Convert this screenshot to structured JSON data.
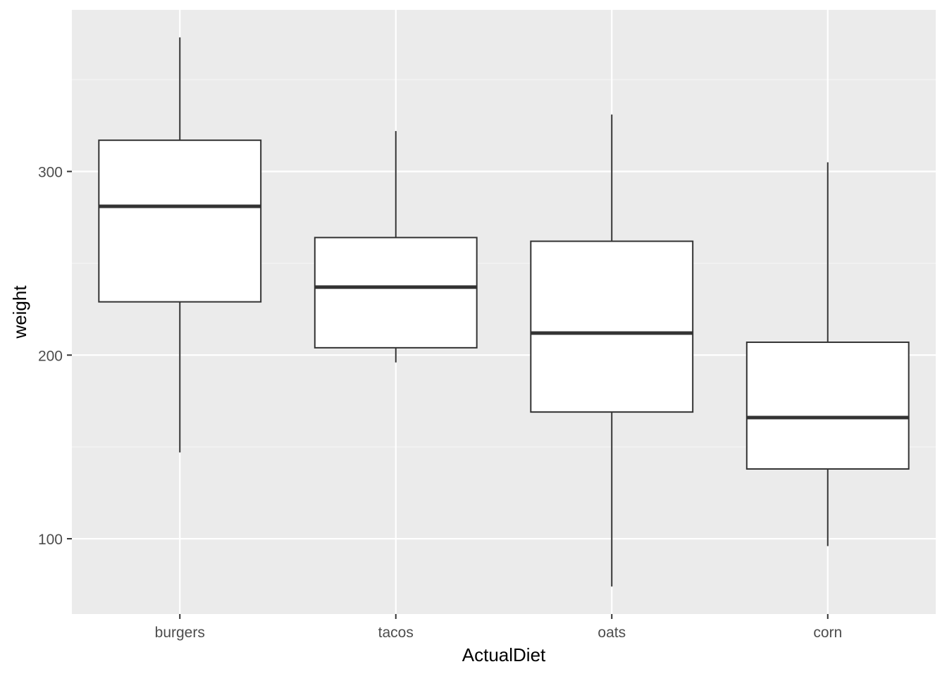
{
  "chart_data": {
    "type": "boxplot",
    "xlabel": "ActualDiet",
    "ylabel": "weight",
    "categories": [
      "burgers",
      "tacos",
      "oats",
      "corn"
    ],
    "boxes": [
      {
        "category": "burgers",
        "whisker_low": 147,
        "q1": 229,
        "median": 281,
        "q3": 317,
        "whisker_high": 373
      },
      {
        "category": "tacos",
        "whisker_low": 196,
        "q1": 204,
        "median": 237,
        "q3": 264,
        "whisker_high": 322
      },
      {
        "category": "oats",
        "whisker_low": 74,
        "q1": 169,
        "median": 212,
        "q3": 262,
        "whisker_high": 331
      },
      {
        "category": "corn",
        "whisker_low": 96,
        "q1": 138,
        "median": 166,
        "q3": 207,
        "whisker_high": 305
      }
    ],
    "y_ticks": [
      100,
      200,
      300
    ],
    "ylim": [
      59,
      388
    ],
    "grid": true,
    "colors": {
      "panel_background": "#EBEBEB",
      "grid_major": "#FFFFFF",
      "grid_minor": "#F5F5F5",
      "box_fill": "#FFFFFF",
      "box_stroke": "#333333",
      "tick_label": "#4D4D4D",
      "axis_title": "#000000"
    }
  }
}
